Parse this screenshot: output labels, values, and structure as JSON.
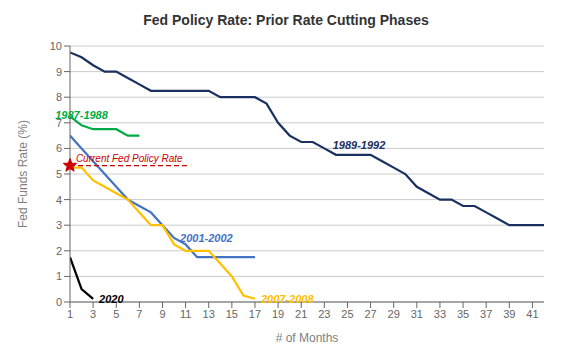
{
  "chart_data": {
    "type": "line",
    "title": "Fed Policy Rate: Prior Rate Cutting Phases",
    "x_label": "# of Months",
    "y_label": "Fed Funds Rate (%)",
    "xlim": [
      1,
      42
    ],
    "ylim": [
      0,
      10
    ],
    "xticks": [
      1,
      3,
      5,
      7,
      9,
      11,
      13,
      15,
      17,
      19,
      21,
      23,
      25,
      27,
      29,
      31,
      33,
      35,
      37,
      39,
      41
    ],
    "yticks": [
      0,
      1,
      2,
      3,
      4,
      5,
      6,
      7,
      8,
      9,
      10
    ],
    "grid": true,
    "series": [
      {
        "name": "1989-1992",
        "color": "#1a3060",
        "x": [
          1,
          2,
          3,
          4,
          5,
          6,
          7,
          8,
          9,
          10,
          11,
          12,
          13,
          14,
          15,
          16,
          17,
          18,
          19,
          20,
          21,
          22,
          23,
          24,
          25,
          26,
          27,
          28,
          29,
          30,
          31,
          32,
          33,
          34,
          35,
          36,
          37,
          38,
          39,
          40,
          41,
          42
        ],
        "values": [
          9.75,
          9.56,
          9.25,
          9.0,
          9.0,
          8.75,
          8.5,
          8.25,
          8.25,
          8.25,
          8.25,
          8.25,
          8.25,
          8.0,
          8.0,
          8.0,
          8.0,
          7.75,
          7.0,
          6.5,
          6.25,
          6.25,
          6.0,
          5.75,
          5.75,
          5.75,
          5.75,
          5.5,
          5.25,
          5.0,
          4.5,
          4.25,
          4.0,
          4.0,
          3.75,
          3.75,
          3.5,
          3.25,
          3.0,
          3.0,
          3.0,
          3.0
        ]
      },
      {
        "name": "1987-1988",
        "color": "#00aa44",
        "x": [
          1,
          2,
          3,
          4,
          5,
          6,
          7
        ],
        "values": [
          7.25,
          6.9,
          6.75,
          6.75,
          6.75,
          6.5,
          6.5
        ]
      },
      {
        "name": "2001-2002",
        "color": "#4472c4",
        "x": [
          1,
          2,
          3,
          4,
          5,
          6,
          7,
          8,
          9,
          10,
          11,
          12,
          13,
          14,
          15,
          16,
          17
        ],
        "values": [
          6.5,
          6.0,
          5.5,
          5.0,
          4.5,
          4.0,
          3.75,
          3.5,
          3.0,
          2.5,
          2.25,
          1.75,
          1.75,
          1.75,
          1.75,
          1.75,
          1.75
        ]
      },
      {
        "name": "2007-2008",
        "color": "#ffc000",
        "x": [
          1,
          2,
          3,
          4,
          5,
          6,
          7,
          8,
          9,
          10,
          11,
          12,
          13,
          14,
          15,
          16,
          17
        ],
        "values": [
          5.25,
          5.25,
          4.75,
          4.5,
          4.25,
          4.0,
          3.5,
          3.0,
          3.0,
          2.25,
          2.0,
          2.0,
          2.0,
          1.5,
          1.0,
          0.25,
          0.125
        ]
      },
      {
        "name": "2020",
        "color": "#000000",
        "x": [
          1,
          2,
          3
        ],
        "values": [
          1.75,
          0.5,
          0.125
        ]
      }
    ],
    "annotations": [
      {
        "text": "Current Fed Policy Rate",
        "value": 5.33,
        "color": "#cc0000",
        "line_style": "dashed",
        "marker": "star"
      }
    ]
  }
}
